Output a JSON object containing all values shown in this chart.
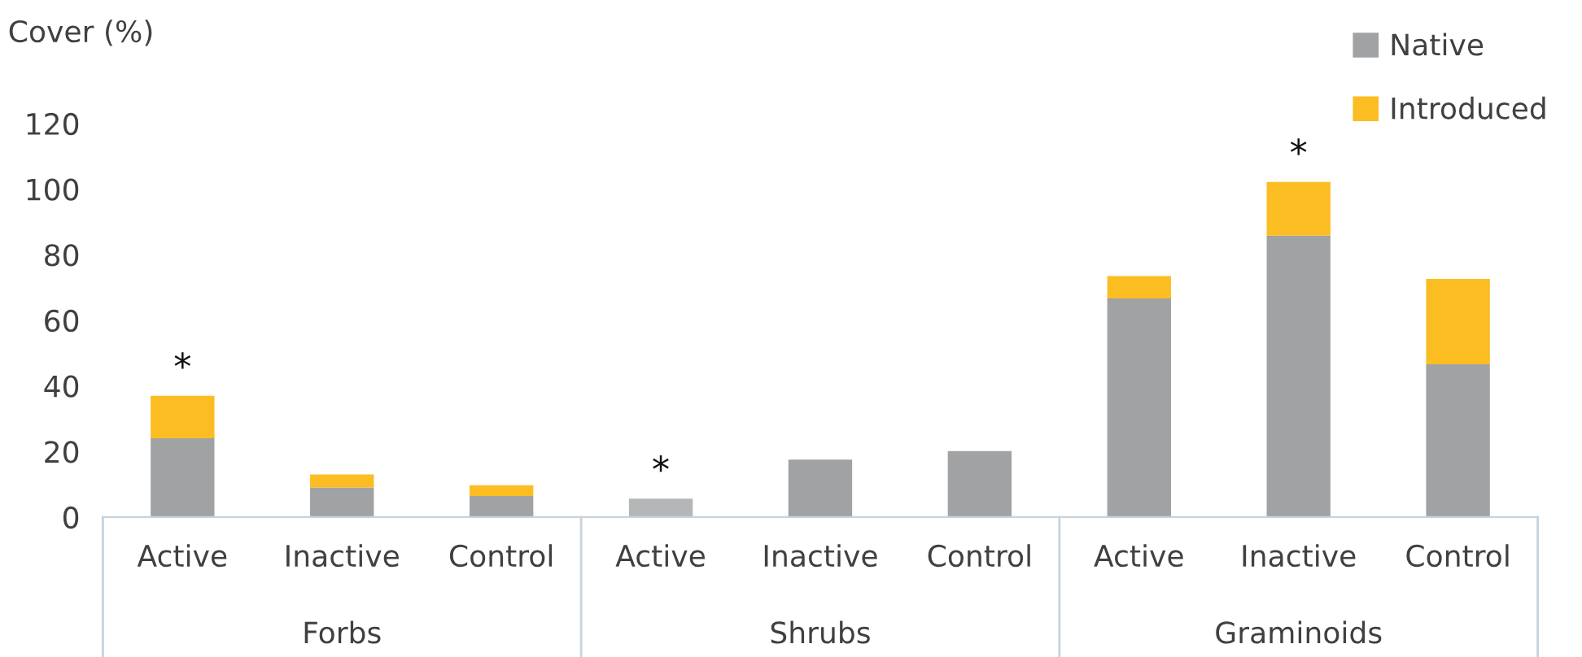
{
  "chart_data": {
    "type": "bar",
    "stacked": true,
    "ylabel": "Cover (%)",
    "categories": [
      "Active",
      "Inactive",
      "Control",
      "Active",
      "Inactive",
      "Control",
      "Active",
      "Inactive",
      "Control"
    ],
    "series": [
      {
        "name": "Native",
        "color": "#a0a2a4",
        "colors": [
          "#a0a2a4",
          "#a0a2a4",
          "#a0a2a4",
          "#b4b6b8",
          "#a0a2a4",
          "#a0a2a4",
          "#a0a2a4",
          "#a0a2a4",
          "#a0a2a4"
        ],
        "values": [
          24,
          9,
          6.4,
          5.6,
          17.5,
          20.1,
          66.7,
          85.8,
          46.6
        ]
      },
      {
        "name": "Introduced",
        "color": "#fbbd22",
        "values": [
          13,
          4,
          3.3,
          0,
          0,
          0,
          6.8,
          16.4,
          26
        ],
        "value_labels": [
          "*",
          null,
          null,
          "*",
          null,
          null,
          null,
          "*",
          null
        ]
      }
    ],
    "ylim": [
      0,
      120
    ],
    "yticks": [
      0,
      20,
      40,
      60,
      80,
      100,
      120
    ],
    "grid": false,
    "legend": "top right",
    "annotations": [
      "Forbs",
      "Shrubs",
      "Graminoids"
    ]
  }
}
